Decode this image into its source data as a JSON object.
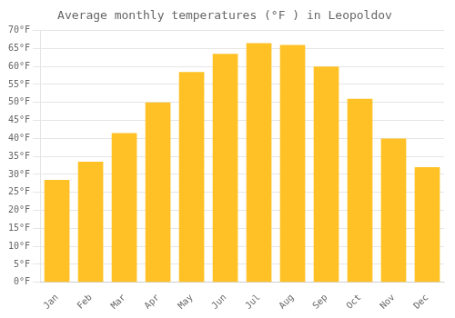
{
  "chart_data": {
    "type": "bar",
    "title": "Average monthly temperatures (°F ) in Leopoldov",
    "categories": [
      "Jan",
      "Feb",
      "Mar",
      "Apr",
      "May",
      "Jun",
      "Jul",
      "Aug",
      "Sep",
      "Oct",
      "Nov",
      "Dec"
    ],
    "values": [
      28.5,
      33.5,
      41.5,
      50.0,
      58.5,
      63.5,
      66.5,
      66.0,
      60.0,
      51.0,
      40.0,
      32.0
    ],
    "color": "#FFC125",
    "ylim": [
      0,
      70
    ],
    "yticks": [
      {
        "value": 0,
        "label": "0°F"
      },
      {
        "value": 5,
        "label": "5°F"
      },
      {
        "value": 10,
        "label": "10°F"
      },
      {
        "value": 15,
        "label": "15°F"
      },
      {
        "value": 20,
        "label": "20°F"
      },
      {
        "value": 25,
        "label": "25°F"
      },
      {
        "value": 30,
        "label": "30°F"
      },
      {
        "value": 35,
        "label": "35°F"
      },
      {
        "value": 40,
        "label": "40°F"
      },
      {
        "value": 45,
        "label": "45°F"
      },
      {
        "value": 50,
        "label": "50°F"
      },
      {
        "value": 55,
        "label": "55°F"
      },
      {
        "value": 60,
        "label": "60°F"
      },
      {
        "value": 65,
        "label": "65°F"
      },
      {
        "value": 70,
        "label": "70°F"
      }
    ],
    "grid": true
  }
}
